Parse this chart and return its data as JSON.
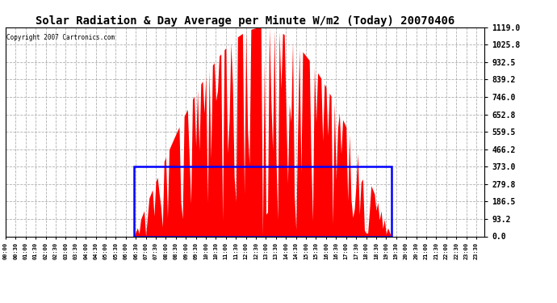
{
  "title": "Solar Radiation & Day Average per Minute W/m2 (Today) 20070406",
  "copyright": "Copyright 2007 Cartronics.com",
  "background_color": "#ffffff",
  "plot_bg_color": "#ffffff",
  "y_min": 0.0,
  "y_max": 1119.0,
  "y_ticks": [
    0.0,
    93.2,
    186.5,
    279.8,
    373.0,
    466.2,
    559.5,
    652.8,
    746.0,
    839.2,
    932.5,
    1025.8,
    1119.0
  ],
  "y_tick_labels": [
    "0.0",
    "93.2",
    "186.5",
    "279.8",
    "373.0",
    "466.2",
    "559.5",
    "652.8",
    "746.0",
    "839.2",
    "932.5",
    "1025.8",
    "1119.0"
  ],
  "solar_color": "#ff0000",
  "avg_rect_color": "#0000ff",
  "grid_color": "#b0b0b0",
  "grid_linestyle": "--",
  "sunrise_idx": 77,
  "sunset_idx": 231,
  "avg_value": 373.0,
  "peak_value": 1119.0,
  "n_points": 288,
  "tick_every": 6
}
